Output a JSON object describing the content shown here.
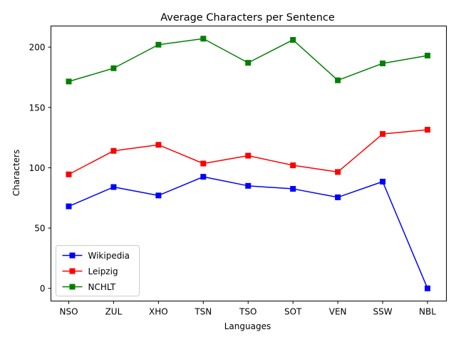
{
  "chart_data": {
    "type": "line",
    "title": "Average Characters per Sentence",
    "xlabel": "Languages",
    "ylabel": "Characters",
    "categories": [
      "NSO",
      "ZUL",
      "XHO",
      "TSN",
      "TSO",
      "SOT",
      "VEN",
      "SSW",
      "NBL"
    ],
    "yticks": [
      0,
      50,
      100,
      150,
      200
    ],
    "ylim": [
      -10.5,
      217.5
    ],
    "grid": false,
    "legend_position": "lower-left",
    "marker": "square",
    "series": [
      {
        "name": "Wikipedia",
        "color": "#0000ff",
        "values": [
          68,
          84,
          77,
          92.5,
          85,
          82.5,
          75.5,
          88.5,
          0
        ]
      },
      {
        "name": "Leipzig",
        "color": "#ff0000",
        "values": [
          94.5,
          114,
          119,
          103.5,
          110,
          102,
          96.5,
          128,
          131.5
        ]
      },
      {
        "name": "NCHLT",
        "color": "#008000",
        "values": [
          171.5,
          182.5,
          202,
          207,
          187,
          206,
          172.5,
          186.5,
          193
        ]
      }
    ]
  }
}
